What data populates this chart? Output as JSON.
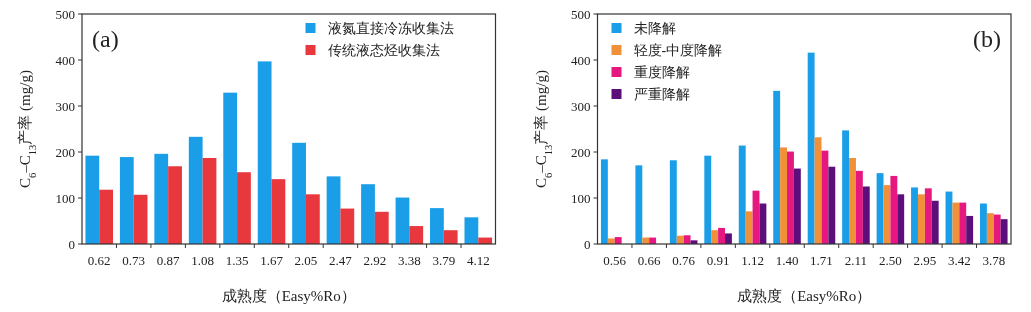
{
  "chart_data": [
    {
      "type": "bar",
      "xlabel": "成熟度（Easy%Ro）",
      "ylabel": "C$_{6}$–C$_{13}$产率 (mg/g)",
      "annotations": [
        "(a)"
      ],
      "categories": [
        "0.62",
        "0.73",
        "0.87",
        "1.08",
        "1.35",
        "1.67",
        "2.05",
        "2.47",
        "2.92",
        "3.38",
        "3.79",
        "4.12"
      ],
      "series": [
        {
          "name": "液氮直接冷冻收集法",
          "color": "#1a9ee8",
          "values": [
            192,
            189,
            196,
            233,
            329,
            397,
            220,
            147,
            130,
            101,
            78,
            58
          ]
        },
        {
          "name": "传统液态烃收集法",
          "color": "#e8383d",
          "values": [
            118,
            107,
            169,
            187,
            156,
            141,
            108,
            77,
            70,
            39,
            30,
            14
          ]
        }
      ],
      "ylim": [
        0,
        500
      ],
      "yticks": [
        0,
        100,
        200,
        300,
        400,
        500
      ],
      "legend": "top right"
    },
    {
      "type": "bar",
      "xlabel": "成熟度（Easy%Ro）",
      "ylabel": "C$_{6}$–C$_{13}$产率 (mg/g)",
      "annotations": [
        "(b)"
      ],
      "categories": [
        "0.56",
        "0.66",
        "0.76",
        "0.91",
        "1.12",
        "1.40",
        "1.71",
        "2.11",
        "2.50",
        "2.95",
        "3.42",
        "3.78"
      ],
      "series": [
        {
          "name": "未降解",
          "color": "#1a9ee8",
          "values": [
            184,
            171,
            182,
            192,
            214,
            333,
            416,
            247,
            154,
            123,
            114,
            88
          ]
        },
        {
          "name": "轻度-中度降解",
          "color": "#f0913a",
          "values": [
            12,
            14,
            18,
            30,
            71,
            210,
            232,
            187,
            128,
            108,
            90,
            67
          ]
        },
        {
          "name": "重度降解",
          "color": "#e6187f",
          "values": [
            15,
            14,
            19,
            35,
            116,
            201,
            203,
            159,
            148,
            121,
            90,
            64
          ]
        },
        {
          "name": "严重降解",
          "color": "#5c0f7a",
          "values": [
            null,
            null,
            8,
            23,
            88,
            164,
            168,
            125,
            108,
            94,
            61,
            54
          ]
        }
      ],
      "ylim": [
        0,
        500
      ],
      "yticks": [
        0,
        100,
        200,
        300,
        400,
        500
      ],
      "legend": "top left"
    }
  ]
}
